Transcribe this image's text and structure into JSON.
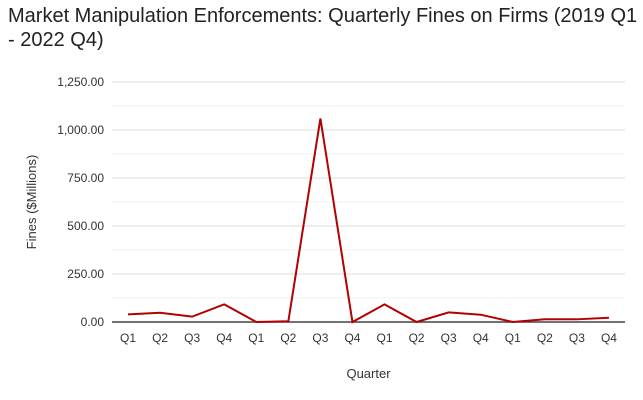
{
  "chart_data": {
    "type": "line",
    "title": "Market Manipulation Enforcements: Quarterly Fines on Firms (2019 Q1 - 2022 Q4)",
    "xlabel": "Quarter",
    "ylabel": "Fines ($Millions)",
    "categories": [
      "Q1",
      "Q2",
      "Q3",
      "Q4",
      "Q1",
      "Q2",
      "Q3",
      "Q4",
      "Q1",
      "Q2",
      "Q3",
      "Q4",
      "Q1",
      "Q2",
      "Q3",
      "Q4"
    ],
    "series": [
      {
        "values": [
          40,
          48,
          28,
          92,
          0,
          4,
          1060,
          0,
          92,
          0,
          50,
          38,
          0,
          14,
          14,
          22
        ],
        "color": "#b30000"
      }
    ],
    "ylim": [
      0,
      1250
    ],
    "yticks": [
      "0.00",
      "250.00",
      "500.00",
      "750.00",
      "1,000.00",
      "1,250.00"
    ],
    "grid": true
  }
}
